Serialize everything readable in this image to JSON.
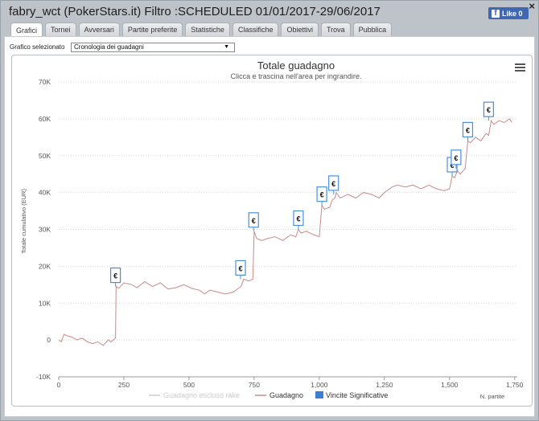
{
  "window": {
    "title": "fabry_wct (PokerStars.it) Filtro :SCHEDULED 01/01/2017-29/06/2017",
    "close_label": "×",
    "like_label": "Like 0"
  },
  "tabs": [
    {
      "label": "Grafici",
      "active": true
    },
    {
      "label": "Tornei",
      "active": false
    },
    {
      "label": "Avversari",
      "active": false
    },
    {
      "label": "Partite preferite",
      "active": false
    },
    {
      "label": "Statistiche",
      "active": false
    },
    {
      "label": "Classifiche",
      "active": false
    },
    {
      "label": "Obiettivi",
      "active": false
    },
    {
      "label": "Trova",
      "active": false
    },
    {
      "label": "Pubblica",
      "active": false
    }
  ],
  "selector": {
    "label": "Grafico selezionato",
    "value": "Cronologia dei guadagni"
  },
  "colors": {
    "line": "#c98a8a",
    "flag_border": "#4a90d9",
    "legend_excluded": "#cccccc",
    "legend_vincite": "#3b7fd3",
    "grid": "#d8d8d8"
  },
  "chart_data": {
    "type": "line",
    "title": "Totale guadagno",
    "subtitle": "Clicca e trascina nell'area per ingrandire.",
    "ylabel": "Totale cumulativo (EUR)",
    "xlabel": "N. partite",
    "xlim": [
      0,
      1760
    ],
    "ylim": [
      -10000,
      70000
    ],
    "x_ticks": [
      0,
      250,
      500,
      750,
      1000,
      1250,
      1500,
      1750
    ],
    "x_tick_labels": [
      "0",
      "250",
      "500",
      "750",
      "1,000",
      "1,250",
      "1,500",
      "1,750"
    ],
    "y_ticks": [
      -10000,
      0,
      10000,
      20000,
      30000,
      40000,
      50000,
      60000,
      70000
    ],
    "y_tick_labels": [
      "-10K",
      "0",
      "10K",
      "20K",
      "30K",
      "40K",
      "50K",
      "60K",
      "70K"
    ],
    "grid": "horizontal dotted",
    "series": [
      {
        "name": "Guadagno",
        "x": [
          0,
          10,
          20,
          30,
          50,
          70,
          90,
          110,
          130,
          150,
          170,
          190,
          200,
          210,
          218,
          220,
          230,
          250,
          280,
          300,
          330,
          360,
          390,
          420,
          450,
          480,
          510,
          540,
          560,
          580,
          610,
          640,
          670,
          690,
          700,
          710,
          730,
          745,
          750,
          760,
          780,
          800,
          830,
          860,
          890,
          910,
          920,
          930,
          950,
          980,
          1000,
          1010,
          1020,
          1040,
          1050,
          1060,
          1065,
          1080,
          1110,
          1140,
          1170,
          1200,
          1230,
          1250,
          1280,
          1300,
          1330,
          1360,
          1390,
          1420,
          1450,
          1480,
          1500,
          1510,
          1520,
          1530,
          1540,
          1560,
          1570,
          1580,
          1600,
          1620,
          1640,
          1650,
          1660,
          1670,
          1690,
          1710,
          1730,
          1740
        ],
        "y": [
          0,
          -500,
          1500,
          1200,
          800,
          0,
          500,
          -500,
          -1000,
          -500,
          -1500,
          0,
          -500,
          0,
          500,
          14500,
          14000,
          15500,
          15000,
          14200,
          15800,
          14500,
          15500,
          13800,
          14200,
          15000,
          14000,
          13500,
          12500,
          13500,
          13000,
          12500,
          13000,
          14000,
          14500,
          16500,
          16000,
          16500,
          29500,
          27500,
          27000,
          27500,
          28000,
          27000,
          28500,
          28000,
          30000,
          29000,
          29500,
          28500,
          28000,
          36500,
          35500,
          36000,
          38000,
          38500,
          40000,
          38500,
          39500,
          38500,
          40000,
          39500,
          38500,
          40000,
          41500,
          42000,
          41500,
          42000,
          41000,
          42000,
          41000,
          40500,
          41000,
          44500,
          44000,
          46000,
          45000,
          46500,
          54000,
          53500,
          55000,
          54000,
          56000,
          55500,
          59500,
          58500,
          59500,
          59000,
          60000,
          59000
        ]
      },
      {
        "name": "Guadagno escluso rake",
        "visible": false
      }
    ],
    "significant_wins": [
      {
        "x": 218,
        "y": 14500,
        "label": "€"
      },
      {
        "x": 698,
        "y": 16500,
        "label": "€"
      },
      {
        "x": 748,
        "y": 29500,
        "label": "€"
      },
      {
        "x": 920,
        "y": 30000,
        "label": "€"
      },
      {
        "x": 1010,
        "y": 36500,
        "label": "€"
      },
      {
        "x": 1055,
        "y": 39500,
        "label": "€"
      },
      {
        "x": 1510,
        "y": 44500,
        "label": "€"
      },
      {
        "x": 1525,
        "y": 46500,
        "label": "€"
      },
      {
        "x": 1570,
        "y": 54000,
        "label": "€"
      },
      {
        "x": 1650,
        "y": 59500,
        "label": "€"
      }
    ],
    "legend": [
      {
        "name": "Guadagno escluso rake",
        "symbol": "line",
        "color": "#cccccc",
        "text_color": "#cccccc"
      },
      {
        "name": "Guadagno",
        "symbol": "line",
        "color": "#c98a8a",
        "text_color": "#333333"
      },
      {
        "name": "Vincite Significative",
        "symbol": "square",
        "color": "#3b7fd3",
        "text_color": "#333333"
      }
    ],
    "legend_position": "bottom-center"
  }
}
